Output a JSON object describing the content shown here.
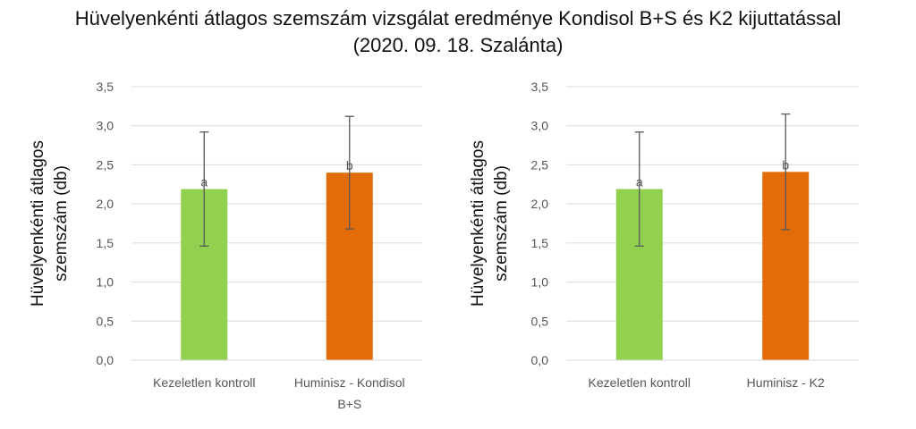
{
  "title_line1": "Hüvelyenkénti átlagos szemszám vizsgálat eredménye Kondisol B+S és K2 kijuttatással",
  "title_line2": "(2020. 09. 18. Szalánta)",
  "colors": {
    "control": "#92d050",
    "treatment": "#e36c09",
    "grid": "#d9d9d9",
    "error_bar": "#595959"
  },
  "chart_data": [
    {
      "type": "bar",
      "ylabel_line1": "Hüvelyenkénti átlagos",
      "ylabel_line2": "szemszám (db)",
      "ylim": [
        0,
        3.5
      ],
      "yticks": [
        "0,0",
        "0,5",
        "1,0",
        "1,5",
        "2,0",
        "2,5",
        "3,0",
        "3,5"
      ],
      "categories": [
        [
          "Kezeletlen kontroll"
        ],
        [
          "Huminisz - Kondisol",
          "B+S"
        ]
      ],
      "values": [
        2.19,
        2.4
      ],
      "errors": [
        0.73,
        0.72
      ],
      "significance": [
        "a",
        "b"
      ],
      "grid": true
    },
    {
      "type": "bar",
      "ylabel_line1": "Hüvelyenkénti átlagos",
      "ylabel_line2": "szemszám (db)",
      "ylim": [
        0,
        3.5
      ],
      "yticks": [
        "0,0",
        "0,5",
        "1,0",
        "1,5",
        "2,0",
        "2,5",
        "3,0",
        "3,5"
      ],
      "categories": [
        [
          "Kezeletlen kontroll"
        ],
        [
          "Huminisz - K2"
        ]
      ],
      "values": [
        2.19,
        2.41
      ],
      "errors": [
        0.73,
        0.74
      ],
      "significance": [
        "a",
        "b"
      ],
      "grid": true
    }
  ]
}
